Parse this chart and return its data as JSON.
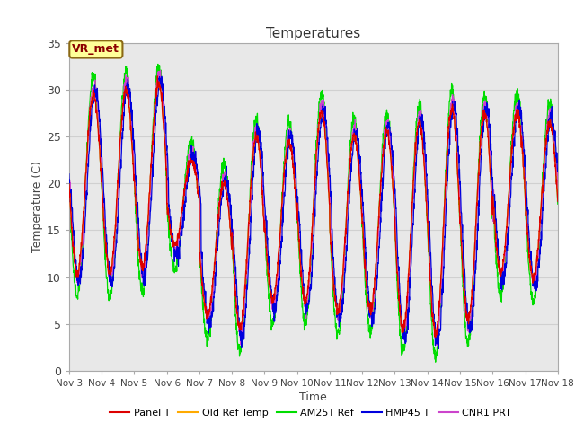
{
  "title": "Temperatures",
  "xlabel": "Time",
  "ylabel": "Temperature (C)",
  "ylim": [
    0,
    35
  ],
  "grid_color": "#d0d0d0",
  "bg_color": "#e8e8e8",
  "line_colors": {
    "panel": "#dd0000",
    "old_ref": "#ffaa00",
    "am25t": "#00dd00",
    "hmp45": "#0000dd",
    "cnr1": "#cc44cc"
  },
  "legend_labels": [
    "Panel T",
    "Old Ref Temp",
    "AM25T Ref",
    "HMP45 T",
    "CNR1 PRT"
  ],
  "yticks": [
    0,
    5,
    10,
    15,
    20,
    25,
    30,
    35
  ],
  "xtick_labels": [
    "Nov 3",
    "Nov 4",
    "Nov 5",
    "Nov 6",
    "Nov 7",
    "Nov 8",
    "Nov 9",
    "Nov 10",
    "Nov 11",
    "Nov 12",
    "Nov 13",
    "Nov 14",
    "Nov 15",
    "Nov 16",
    "Nov 17",
    "Nov 18"
  ],
  "annotation_text": "VR_met",
  "figsize": [
    6.4,
    4.8
  ],
  "dpi": 100
}
